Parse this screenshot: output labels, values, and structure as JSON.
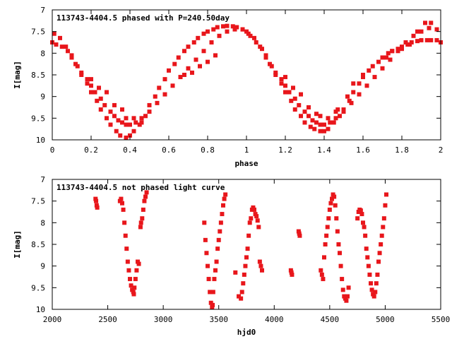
{
  "chart_data": [
    {
      "type": "scatter",
      "title": "113743-4404.5 phased with P=240.50day",
      "xlabel": "phase",
      "ylabel": "I[mag]",
      "xlim": [
        0,
        2
      ],
      "ylim": [
        10,
        7
      ],
      "y_inverted": true,
      "grid": false,
      "color": "#e8161b",
      "x_ticks": [
        "0",
        "0.2",
        "0.4",
        "0.6",
        "0.8",
        "1",
        "1.2",
        "1.4",
        "1.6",
        "1.8",
        "2"
      ],
      "y_ticks": [
        "7",
        "7.5",
        "8",
        "8.5",
        "9",
        "9.5",
        "10"
      ],
      "series": [
        {
          "x": [
            0.0,
            0.02,
            0.05,
            0.08,
            0.1,
            0.13,
            0.15,
            0.18,
            0.2,
            0.23,
            0.25,
            0.28,
            0.3,
            0.33,
            0.35,
            0.38,
            0.4,
            0.42,
            0.45,
            0.48,
            0.5,
            0.53,
            0.55,
            0.58,
            0.6,
            0.63,
            0.65,
            0.68,
            0.7,
            0.73,
            0.75,
            0.78,
            0.8,
            0.83,
            0.85,
            0.88,
            0.9,
            0.93,
            0.95,
            0.98,
            1.0,
            1.02,
            1.05,
            1.08,
            1.1,
            1.13,
            1.15,
            1.18,
            1.2,
            1.23,
            1.25,
            1.28,
            1.3,
            1.33,
            1.35,
            1.38,
            1.4,
            1.42,
            1.45,
            1.48,
            1.5,
            1.53,
            1.55,
            1.58,
            1.6,
            1.63,
            1.65,
            1.68,
            1.7,
            1.73,
            1.75,
            1.78,
            1.8,
            1.83,
            1.85,
            1.88,
            1.9,
            1.93,
            1.95,
            1.98,
            2.0
          ],
          "y": [
            7.75,
            7.8,
            7.85,
            7.95,
            8.1,
            8.3,
            8.5,
            8.7,
            8.9,
            9.1,
            9.3,
            9.5,
            9.65,
            9.8,
            9.9,
            9.95,
            9.9,
            9.8,
            9.65,
            9.45,
            9.2,
            9.0,
            8.8,
            8.6,
            8.4,
            8.25,
            8.1,
            7.95,
            7.85,
            7.75,
            7.65,
            7.55,
            7.5,
            7.45,
            7.4,
            7.38,
            7.37,
            7.38,
            7.4,
            7.45,
            7.5,
            7.6,
            7.75,
            7.9,
            8.1,
            8.3,
            8.5,
            8.7,
            8.9,
            9.1,
            9.3,
            9.45,
            9.6,
            9.7,
            9.75,
            9.8,
            9.8,
            9.75,
            9.6,
            9.45,
            9.3,
            9.1,
            8.9,
            8.7,
            8.55,
            8.4,
            8.3,
            8.2,
            8.1,
            8.0,
            7.95,
            7.9,
            7.85,
            7.8,
            7.75,
            7.72,
            7.7,
            7.7,
            7.7,
            7.7,
            7.75
          ]
        },
        {
          "x": [
            0.01,
            0.04,
            0.07,
            0.1,
            0.12,
            0.15,
            0.18,
            0.2,
            0.22,
            0.25,
            0.27,
            0.3,
            0.32,
            0.34,
            0.36,
            0.38,
            0.4,
            0.43,
            0.46,
            0.5,
            0.54,
            0.58,
            0.62,
            0.66,
            0.7,
            0.74,
            0.78,
            0.82,
            0.86,
            0.9,
            0.94,
            0.98,
            1.01,
            1.04,
            1.07,
            1.1,
            1.12,
            1.15,
            1.18,
            1.2,
            1.22,
            1.25,
            1.27,
            1.3,
            1.32,
            1.34,
            1.36,
            1.38,
            1.4,
            1.43,
            1.46,
            1.5,
            1.54,
            1.58,
            1.62,
            1.66,
            1.7,
            1.74,
            1.78,
            1.82,
            1.86,
            1.9,
            1.94,
            1.98
          ],
          "y": [
            7.55,
            7.65,
            7.85,
            8.05,
            8.25,
            8.45,
            8.6,
            8.75,
            8.9,
            9.05,
            9.2,
            9.35,
            9.45,
            9.55,
            9.6,
            9.65,
            9.65,
            9.6,
            9.5,
            9.35,
            9.15,
            8.95,
            8.75,
            8.55,
            8.35,
            8.15,
            7.95,
            7.75,
            7.6,
            7.5,
            7.45,
            7.45,
            7.55,
            7.65,
            7.85,
            8.05,
            8.25,
            8.45,
            8.6,
            8.75,
            8.9,
            9.05,
            9.2,
            9.35,
            9.45,
            9.55,
            9.6,
            9.65,
            9.65,
            9.6,
            9.5,
            9.35,
            9.15,
            8.95,
            8.75,
            8.55,
            8.35,
            8.15,
            7.95,
            7.75,
            7.6,
            7.5,
            7.42,
            7.45
          ]
        },
        {
          "x": [
            0.2,
            0.24,
            0.28,
            0.32,
            0.36,
            0.38,
            0.42,
            0.46,
            1.2,
            1.24,
            1.28,
            1.32,
            1.36,
            1.38,
            1.42,
            1.46,
            1.47,
            1.52,
            1.55,
            1.6,
            1.72,
            1.75,
            1.8,
            1.84,
            1.88,
            1.92,
            1.95,
            0.68,
            0.72,
            0.76,
            0.8,
            0.84
          ],
          "y": [
            8.6,
            8.8,
            8.9,
            9.2,
            9.3,
            9.5,
            9.5,
            9.6,
            8.55,
            8.8,
            8.95,
            9.25,
            9.4,
            9.45,
            9.5,
            9.35,
            9.3,
            9.0,
            8.7,
            8.5,
            8.1,
            7.95,
            7.9,
            7.8,
            7.5,
            7.3,
            7.3,
            8.5,
            8.45,
            8.3,
            8.2,
            8.05
          ]
        }
      ]
    },
    {
      "type": "scatter",
      "title": "113743-4404.5 not phased light curve",
      "xlabel": "hjd0",
      "ylabel": "I[mag]",
      "xlim": [
        2000,
        5500
      ],
      "ylim": [
        10,
        7
      ],
      "y_inverted": true,
      "grid": false,
      "color": "#e8161b",
      "x_ticks": [
        "2000",
        "2500",
        "3000",
        "3500",
        "4000",
        "4500",
        "5000",
        "5500"
      ],
      "y_ticks": [
        "7",
        "7.5",
        "8",
        "8.5",
        "9",
        "9.5",
        "10"
      ],
      "series": [
        {
          "x": [
            2390,
            2395,
            2400,
            2405,
            2610,
            2620,
            2630,
            2640,
            2650,
            2660,
            2670,
            2680,
            2690,
            2700,
            2710,
            2720,
            2730,
            2735,
            2740,
            2750,
            2760,
            2770,
            2780,
            2795,
            2800,
            2810,
            2820,
            2830,
            2840,
            2850,
            3370,
            3380,
            3390,
            3400,
            3410,
            3420,
            3430,
            3440,
            3445,
            3450,
            3460,
            3470,
            3480,
            3490,
            3500,
            3510,
            3520,
            3530,
            3540,
            3550,
            3560,
            3650,
            3680,
            3700,
            3710,
            3720,
            3730,
            3740,
            3750,
            3760,
            3770,
            3780,
            3790,
            3800,
            3810,
            3820,
            3830,
            3840,
            3850,
            3860,
            3870,
            3880,
            3890,
            4150,
            4155,
            4160,
            4220,
            4225,
            4230,
            4420,
            4430,
            4440,
            4450,
            4460,
            4470,
            4480,
            4490,
            4500,
            4510,
            4520,
            4530,
            4540,
            4550,
            4560,
            4570,
            4580,
            4590,
            4600,
            4610,
            4620,
            4630,
            4640,
            4650,
            4660,
            4670,
            4750,
            4760,
            4770,
            4780,
            4790,
            4800,
            4810,
            4820,
            4830,
            4840,
            4850,
            4860,
            4870,
            4880,
            4890,
            4900,
            4910,
            4920,
            4930,
            4940,
            4950,
            4960,
            4970,
            4980,
            4990,
            5000,
            5010
          ],
          "y": [
            7.45,
            7.5,
            7.6,
            7.65,
            7.5,
            7.45,
            7.55,
            7.7,
            8.0,
            8.3,
            8.6,
            8.9,
            9.1,
            9.3,
            9.45,
            9.55,
            9.6,
            9.65,
            9.5,
            9.3,
            9.1,
            8.9,
            8.95,
            8.1,
            8.0,
            7.9,
            7.7,
            7.5,
            7.4,
            7.3,
            8.0,
            8.4,
            8.7,
            9.0,
            9.3,
            9.6,
            9.85,
            9.95,
            9.9,
            9.6,
            9.3,
            9.1,
            8.9,
            8.6,
            8.4,
            8.2,
            8.0,
            7.8,
            7.6,
            7.45,
            7.35,
            9.15,
            9.7,
            9.75,
            9.6,
            9.4,
            9.2,
            9.0,
            8.8,
            8.6,
            8.3,
            8.0,
            7.9,
            7.7,
            7.65,
            7.7,
            7.8,
            7.85,
            7.95,
            8.1,
            8.9,
            9.0,
            9.1,
            9.1,
            9.15,
            9.2,
            8.2,
            8.25,
            8.3,
            9.1,
            9.2,
            9.3,
            8.8,
            8.5,
            8.3,
            8.1,
            7.9,
            7.7,
            7.55,
            7.45,
            7.35,
            7.4,
            7.6,
            7.9,
            8.2,
            8.5,
            8.7,
            9.0,
            9.3,
            9.55,
            9.7,
            9.75,
            9.8,
            9.7,
            9.5,
            7.9,
            7.75,
            7.7,
            7.72,
            7.8,
            8.0,
            8.1,
            8.3,
            8.6,
            8.8,
            9.0,
            9.2,
            9.4,
            9.55,
            9.65,
            9.7,
            9.6,
            9.4,
            9.2,
            8.9,
            8.7,
            8.5,
            8.3,
            8.1,
            7.9,
            7.6,
            7.35
          ]
        }
      ]
    }
  ]
}
